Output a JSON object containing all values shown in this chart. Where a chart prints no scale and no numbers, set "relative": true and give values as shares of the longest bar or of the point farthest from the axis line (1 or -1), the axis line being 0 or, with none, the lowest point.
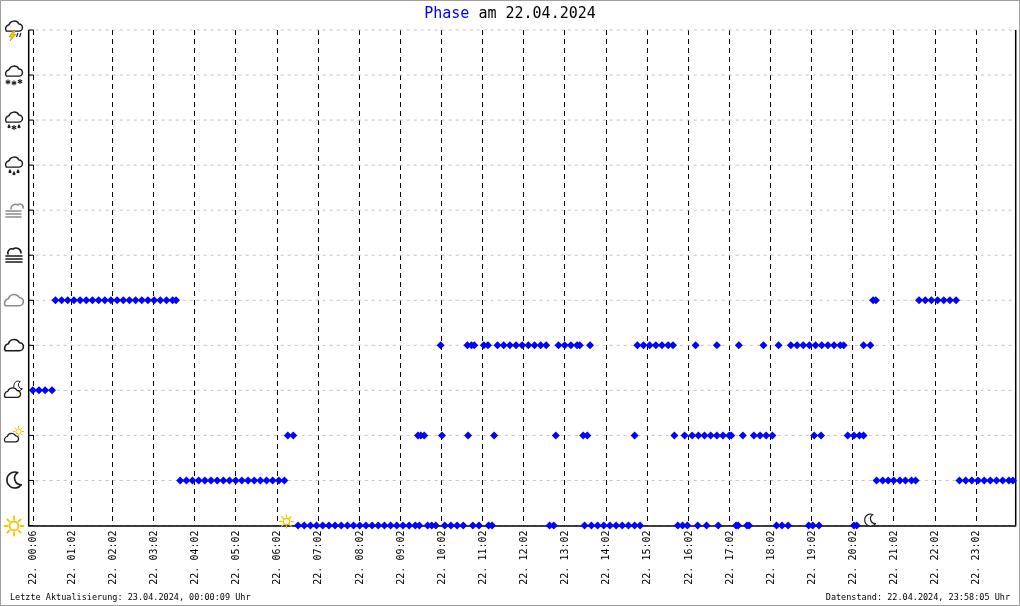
{
  "chart_data": {
    "type": "scatter",
    "title": "Phase am 22.04.2024",
    "relative": true,
    "tick_labels": "x",
    "grid": true,
    "marker": "diamond",
    "xlim": [
      "2024-04-22T00:00",
      "2024-04-23T00:00"
    ],
    "xticks": [
      {
        "value": "2024-04-22T00:06",
        "label": "22. 00:06"
      },
      {
        "value": "2024-04-22T01:02",
        "label": "22. 01:02"
      },
      {
        "value": "2024-04-22T02:02",
        "label": "22. 02:02"
      },
      {
        "value": "2024-04-22T03:02",
        "label": "22. 03:02"
      },
      {
        "value": "2024-04-22T04:02",
        "label": "22. 04:02"
      },
      {
        "value": "2024-04-22T05:02",
        "label": "22. 05:02"
      },
      {
        "value": "2024-04-22T06:02",
        "label": "22. 06:02"
      },
      {
        "value": "2024-04-22T07:02",
        "label": "22. 07:02"
      },
      {
        "value": "2024-04-22T08:02",
        "label": "22. 08:02"
      },
      {
        "value": "2024-04-22T09:02",
        "label": "22. 09:02"
      },
      {
        "value": "2024-04-22T10:02",
        "label": "22. 10:02"
      },
      {
        "value": "2024-04-22T11:02",
        "label": "22. 11:02"
      },
      {
        "value": "2024-04-22T12:02",
        "label": "22. 12:02"
      },
      {
        "value": "2024-04-22T13:02",
        "label": "22. 13:02"
      },
      {
        "value": "2024-04-22T14:02",
        "label": "22. 14:02"
      },
      {
        "value": "2024-04-22T15:02",
        "label": "22. 15:02"
      },
      {
        "value": "2024-04-22T16:02",
        "label": "22. 16:02"
      },
      {
        "value": "2024-04-22T17:02",
        "label": "22. 17:02"
      },
      {
        "value": "2024-04-22T18:02",
        "label": "22. 18:02"
      },
      {
        "value": "2024-04-22T19:02",
        "label": "22. 19:02"
      },
      {
        "value": "2024-04-22T20:02",
        "label": "22. 20:02"
      },
      {
        "value": "2024-04-22T21:02",
        "label": "22. 21:02"
      },
      {
        "value": "2024-04-22T22:02",
        "label": "22. 22:02"
      },
      {
        "value": "2024-04-22T23:02",
        "label": "22. 23:02"
      }
    ],
    "color": "#0000ff",
    "x": [
      "2024-04-22T00:06",
      "2024-04-22T00:15",
      "2024-04-22T00:24",
      "2024-04-22T00:34",
      "2024-04-22T00:39",
      "2024-04-22T00:48",
      "2024-04-22T00:57",
      "2024-04-22T01:06",
      "2024-04-22T01:15",
      "2024-04-22T01:24",
      "2024-04-22T01:33",
      "2024-04-22T01:42",
      "2024-04-22T01:51",
      "2024-04-22T02:00",
      "2024-04-22T02:09",
      "2024-04-22T02:18",
      "2024-04-22T02:27",
      "2024-04-22T02:36",
      "2024-04-22T02:45",
      "2024-04-22T02:54",
      "2024-04-22T03:03",
      "2024-04-22T03:12",
      "2024-04-22T03:21",
      "2024-04-22T03:30",
      "2024-04-22T03:35",
      "2024-04-22T20:32",
      "2024-04-22T20:36",
      "2024-04-22T21:39",
      "2024-04-22T21:48",
      "2024-04-22T21:57",
      "2024-04-22T22:06",
      "2024-04-22T22:15",
      "2024-04-22T22:24",
      "2024-04-22T22:33",
      "2024-04-22T03:41",
      "2024-04-22T03:50",
      "2024-04-22T03:59",
      "2024-04-22T04:08",
      "2024-04-22T04:17",
      "2024-04-22T04:26",
      "2024-04-22T04:35",
      "2024-04-22T04:44",
      "2024-04-22T04:53",
      "2024-04-22T05:02",
      "2024-04-22T05:11",
      "2024-04-22T05:20",
      "2024-04-22T05:29",
      "2024-04-22T05:38",
      "2024-04-22T05:47",
      "2024-04-22T05:56",
      "2024-04-22T06:05",
      "2024-04-22T06:13",
      "2024-04-22T20:37",
      "2024-04-22T20:46",
      "2024-04-22T20:54",
      "2024-04-22T21:02",
      "2024-04-22T21:11",
      "2024-04-22T21:19",
      "2024-04-22T21:28",
      "2024-04-22T21:34",
      "2024-04-22T22:38",
      "2024-04-22T22:47",
      "2024-04-22T22:56",
      "2024-04-22T23:05",
      "2024-04-22T23:14",
      "2024-04-22T23:23",
      "2024-04-22T23:32",
      "2024-04-22T23:41",
      "2024-04-22T23:50",
      "2024-04-22T23:56",
      "2024-04-22T06:18",
      "2024-04-22T06:26",
      "2024-04-22T09:28",
      "2024-04-22T09:32",
      "2024-04-22T09:37",
      "2024-04-22T10:03",
      "2024-04-22T10:41",
      "2024-04-22T11:19",
      "2024-04-22T12:49",
      "2024-04-22T13:29",
      "2024-04-22T13:35",
      "2024-04-22T14:44",
      "2024-04-22T15:42",
      "2024-04-22T15:57",
      "2024-04-22T16:08",
      "2024-04-22T16:17",
      "2024-04-22T16:26",
      "2024-04-22T16:35",
      "2024-04-22T16:44",
      "2024-04-22T16:53",
      "2024-04-22T17:02",
      "2024-04-22T17:05",
      "2024-04-22T17:22",
      "2024-04-22T17:38",
      "2024-04-22T17:47",
      "2024-04-22T17:56",
      "2024-04-22T18:05",
      "2024-04-22T19:06",
      "2024-04-22T19:16",
      "2024-04-22T19:55",
      "2024-04-22T20:04",
      "2024-04-22T20:12",
      "2024-04-22T20:18",
      "2024-04-22T10:01",
      "2024-04-22T10:40",
      "2024-04-22T10:46",
      "2024-04-22T10:50",
      "2024-04-22T11:04",
      "2024-04-22T11:10",
      "2024-04-22T11:24",
      "2024-04-22T11:33",
      "2024-04-22T11:42",
      "2024-04-22T11:51",
      "2024-04-22T12:00",
      "2024-04-22T12:09",
      "2024-04-22T12:18",
      "2024-04-22T12:27",
      "2024-04-22T12:35",
      "2024-04-22T12:53",
      "2024-04-22T13:02",
      "2024-04-22T13:11",
      "2024-04-22T13:20",
      "2024-04-22T13:24",
      "2024-04-22T13:39",
      "2024-04-22T14:48",
      "2024-04-22T14:57",
      "2024-04-22T15:06",
      "2024-04-22T15:15",
      "2024-04-22T15:24",
      "2024-04-22T15:33",
      "2024-04-22T15:40",
      "2024-04-22T16:13",
      "2024-04-22T16:44",
      "2024-04-22T17:16",
      "2024-04-22T17:52",
      "2024-04-22T18:14",
      "2024-04-22T18:32",
      "2024-04-22T18:41",
      "2024-04-22T18:50",
      "2024-04-22T18:59",
      "2024-04-22T19:08",
      "2024-04-22T19:17",
      "2024-04-22T19:26",
      "2024-04-22T19:35",
      "2024-04-22T19:44",
      "2024-04-22T19:49",
      "2024-04-22T20:18",
      "2024-04-22T20:28",
      "2024-04-22T06:33",
      "2024-04-22T06:42",
      "2024-04-22T06:51",
      "2024-04-22T07:00",
      "2024-04-22T07:09",
      "2024-04-22T07:18",
      "2024-04-22T07:27",
      "2024-04-22T07:36",
      "2024-04-22T07:45",
      "2024-04-22T07:54",
      "2024-04-22T08:03",
      "2024-04-22T08:12",
      "2024-04-22T08:21",
      "2024-04-22T08:30",
      "2024-04-22T08:39",
      "2024-04-22T08:48",
      "2024-04-22T08:57",
      "2024-04-22T09:06",
      "2024-04-22T09:15",
      "2024-04-22T09:24",
      "2024-04-22T09:30",
      "2024-04-22T09:42",
      "2024-04-22T09:48",
      "2024-04-22T09:54",
      "2024-04-22T10:07",
      "2024-04-22T10:16",
      "2024-04-22T10:25",
      "2024-04-22T10:34",
      "2024-04-22T10:48",
      "2024-04-22T10:57",
      "2024-04-22T11:11",
      "2024-04-22T11:16",
      "2024-04-22T12:40",
      "2024-04-22T12:46",
      "2024-04-22T13:31",
      "2024-04-22T13:41",
      "2024-04-22T13:50",
      "2024-04-22T13:59",
      "2024-04-22T14:08",
      "2024-04-22T14:17",
      "2024-04-22T14:26",
      "2024-04-22T14:35",
      "2024-04-22T14:44",
      "2024-04-22T14:52",
      "2024-04-22T15:47",
      "2024-04-22T15:54",
      "2024-04-22T16:01",
      "2024-04-22T16:16",
      "2024-04-22T16:29",
      "2024-04-22T16:46",
      "2024-04-22T17:12",
      "2024-04-22T17:15",
      "2024-04-22T17:28",
      "2024-04-22T17:31",
      "2024-04-22T18:11",
      "2024-04-22T18:19",
      "2024-04-22T18:28",
      "2024-04-22T18:58",
      "2024-04-22T19:04",
      "2024-04-22T19:13",
      "2024-04-22T20:04",
      "2024-04-22T20:08"
    ],
    "values": [
      0.6,
      0.6,
      0.6,
      0.6,
      1,
      1,
      1,
      1,
      1,
      1,
      1,
      1,
      1,
      1,
      1,
      1,
      1,
      1,
      1,
      1,
      1,
      1,
      1,
      1,
      1,
      1,
      1,
      1,
      1,
      1,
      1,
      1,
      1,
      1,
      0.2,
      0.2,
      0.2,
      0.2,
      0.2,
      0.2,
      0.2,
      0.2,
      0.2,
      0.2,
      0.2,
      0.2,
      0.2,
      0.2,
      0.2,
      0.2,
      0.2,
      0.2,
      0.2,
      0.2,
      0.2,
      0.2,
      0.2,
      0.2,
      0.2,
      0.2,
      0.2,
      0.2,
      0.2,
      0.2,
      0.2,
      0.2,
      0.2,
      0.2,
      0.2,
      0.2,
      0.4,
      0.4,
      0.4,
      0.4,
      0.4,
      0.4,
      0.4,
      0.4,
      0.4,
      0.4,
      0.4,
      0.4,
      0.4,
      0.4,
      0.4,
      0.4,
      0.4,
      0.4,
      0.4,
      0.4,
      0.4,
      0.4,
      0.4,
      0.4,
      0.4,
      0.4,
      0.4,
      0.4,
      0.4,
      0.4,
      0.4,
      0.4,
      0.4,
      0.8,
      0.8,
      0.8,
      0.8,
      0.8,
      0.8,
      0.8,
      0.8,
      0.8,
      0.8,
      0.8,
      0.8,
      0.8,
      0.8,
      0.8,
      0.8,
      0.8,
      0.8,
      0.8,
      0.8,
      0.8,
      0.8,
      0.8,
      0.8,
      0.8,
      0.8,
      0.8,
      0.8,
      0.8,
      0.8,
      0.8,
      0.8,
      0.8,
      0.8,
      0.8,
      0.8,
      0.8,
      0.8,
      0.8,
      0.8,
      0.8,
      0.8,
      0.8,
      0.8,
      0.8,
      0,
      0,
      0,
      0,
      0,
      0,
      0,
      0,
      0,
      0,
      0,
      0,
      0,
      0,
      0,
      0,
      0,
      0,
      0,
      0,
      0,
      0,
      0,
      0,
      0,
      0,
      0,
      0,
      0,
      0,
      0,
      0,
      0,
      0,
      0,
      0,
      0,
      0,
      0,
      0,
      0,
      0,
      0,
      0,
      0,
      0,
      0,
      0,
      0,
      0,
      0,
      0,
      0,
      0,
      0,
      0,
      0,
      0,
      0,
      0,
      0,
      0
    ],
    "annotations": [
      "Letzte Aktualisierung: 23.04.2024, 00:00:09 Uhr",
      "Datenstand: 22.04.2024, 23:58:05 Uhr"
    ]
  }
}
